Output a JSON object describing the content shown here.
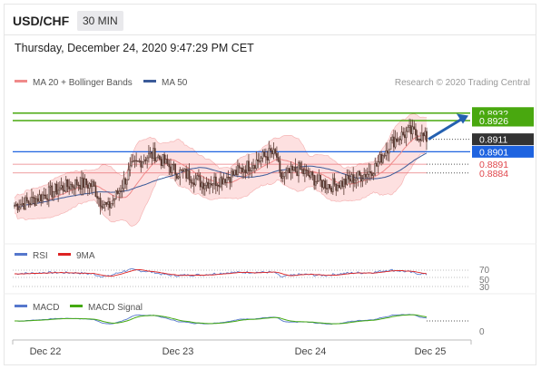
{
  "header": {
    "pair": "USD/CHF",
    "timeframe": "30 MIN",
    "timestamp": "Thursday, December 24, 2020 9:47:29 PM CET"
  },
  "colors": {
    "candle": "#5a3a32",
    "bollinger_fill": "#fde0e0",
    "bollinger_line": "#f5b5b5",
    "ma20": "#f08a8a",
    "ma50": "#3b5b99",
    "resistance": "#49a80f",
    "pivot": "#1e63e0",
    "support": "#e0474c",
    "last_price": "#333333",
    "arrow": "#2460b0",
    "rsi": "#5577cc",
    "rsi_ma": "#dd2222",
    "macd": "#5577cc",
    "macd_signal": "#44aa11"
  },
  "chart_data": [
    {
      "type": "candlestick",
      "title": "USD/CHF 30 MIN",
      "legend": [
        {
          "name": "MA 20 + Bollinger Bands",
          "color": "#f08a8a"
        },
        {
          "name": "MA 50",
          "color": "#3b5b99"
        }
      ],
      "credit": "Research © 2020 Trading Central",
      "x_tick_labels": [
        "Dec 22",
        "Dec 23",
        "Dec 24",
        "Dec 25"
      ],
      "ylim": [
        0.883,
        0.895
      ],
      "levels": [
        {
          "value": 0.8932,
          "label": "0.8932",
          "kind": "resistance"
        },
        {
          "value": 0.8926,
          "label": "0.8926",
          "kind": "resistance"
        },
        {
          "value": 0.8911,
          "label": "0.8911",
          "kind": "last_price"
        },
        {
          "value": 0.8901,
          "label": "0.8901",
          "kind": "pivot"
        },
        {
          "value": 0.8891,
          "label": "0.8891",
          "kind": "support"
        },
        {
          "value": 0.8884,
          "label": "0.8884",
          "kind": "support"
        }
      ],
      "closes_points": [
        [
          0,
          0.8858
        ],
        [
          10,
          0.8861
        ],
        [
          20,
          0.8867
        ],
        [
          30,
          0.8872
        ],
        [
          40,
          0.8876
        ],
        [
          50,
          0.8874
        ],
        [
          55,
          0.8862
        ],
        [
          60,
          0.8856
        ],
        [
          67,
          0.887
        ],
        [
          75,
          0.8888
        ],
        [
          84,
          0.8897
        ],
        [
          90,
          0.8899
        ],
        [
          97,
          0.8891
        ],
        [
          104,
          0.8885
        ],
        [
          112,
          0.8882
        ],
        [
          120,
          0.8876
        ],
        [
          130,
          0.8878
        ],
        [
          140,
          0.8883
        ],
        [
          150,
          0.889
        ],
        [
          160,
          0.8897
        ],
        [
          164,
          0.89
        ],
        [
          168,
          0.8897
        ],
        [
          170,
          0.888
        ],
        [
          175,
          0.8883
        ],
        [
          182,
          0.8887
        ],
        [
          188,
          0.8882
        ],
        [
          195,
          0.8877
        ],
        [
          202,
          0.8874
        ],
        [
          210,
          0.8876
        ],
        [
          218,
          0.888
        ],
        [
          226,
          0.8884
        ],
        [
          232,
          0.889
        ],
        [
          236,
          0.8899
        ],
        [
          240,
          0.8907
        ],
        [
          246,
          0.8913
        ],
        [
          253,
          0.8917
        ],
        [
          260,
          0.8914
        ],
        [
          265,
          0.8911
        ]
      ],
      "candle_count": 265
    },
    {
      "type": "line",
      "title": "RSI",
      "series": [
        {
          "name": "RSI",
          "color": "#5577cc"
        },
        {
          "name": "9MA",
          "color": "#dd2222"
        }
      ],
      "y_tick_labels": [
        "70",
        "50",
        "30"
      ],
      "ylim": [
        20,
        80
      ]
    },
    {
      "type": "line",
      "title": "MACD",
      "series": [
        {
          "name": "MACD",
          "color": "#5577cc"
        },
        {
          "name": "MACD Signal",
          "color": "#44aa11"
        }
      ],
      "y_tick_labels": [
        "0"
      ]
    }
  ]
}
